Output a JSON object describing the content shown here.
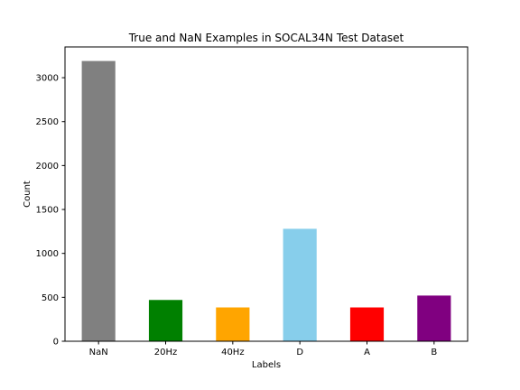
{
  "chart_data": {
    "type": "bar",
    "title": "True and NaN Examples in SOCAL34N Test Dataset",
    "xlabel": "Labels",
    "ylabel": "Count",
    "categories": [
      "NaN",
      "20Hz",
      "40Hz",
      "D",
      "A",
      "B"
    ],
    "values": [
      3190,
      470,
      385,
      1280,
      385,
      520
    ],
    "colors": [
      "#808080",
      "#008000",
      "#ffa500",
      "#87ceeb",
      "#ff0000",
      "#800080"
    ],
    "ylim": [
      0,
      3350
    ],
    "yticks": [
      0,
      500,
      1000,
      1500,
      2000,
      2500,
      3000
    ],
    "grid": false,
    "legend": "none"
  }
}
